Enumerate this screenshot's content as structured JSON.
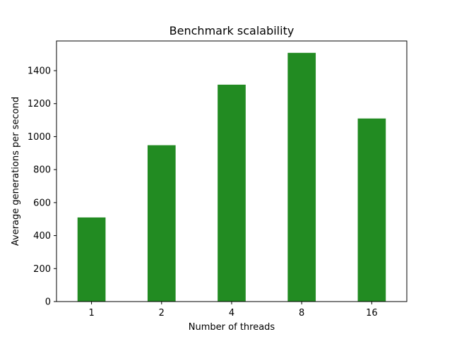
{
  "chart_data": {
    "type": "bar",
    "title": "Benchmark scalability",
    "xlabel": "Number of threads",
    "ylabel": "Average generations per second",
    "categories": [
      "1",
      "2",
      "4",
      "8",
      "16"
    ],
    "values": [
      510,
      948,
      1315,
      1508,
      1110
    ],
    "ylim": [
      0,
      1580
    ],
    "yticks": [
      0,
      200,
      400,
      600,
      800,
      1000,
      1200,
      1400
    ],
    "bar_color": "#228b22",
    "grid": false,
    "legend": "none"
  }
}
